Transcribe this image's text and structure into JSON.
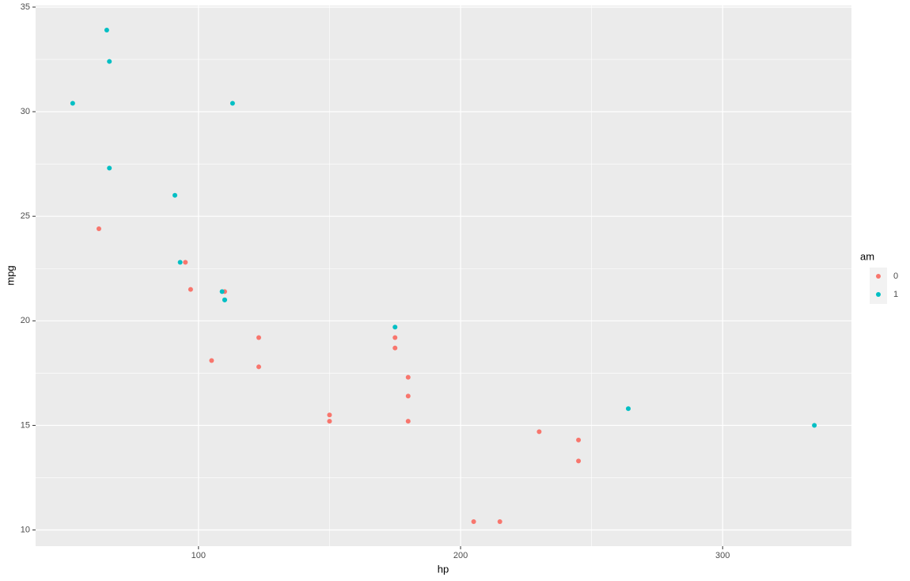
{
  "chart_data": {
    "type": "scatter",
    "x_label": "hp",
    "y_label": "mpg",
    "legend_title": "am",
    "legend_position": "right",
    "xlim": [
      37.85,
      349.15
    ],
    "ylim": [
      9.225,
      35.075
    ],
    "xticks": [
      100,
      200,
      300
    ],
    "yticks": [
      10,
      15,
      20,
      25,
      30,
      35
    ],
    "grid": true,
    "panel_color": "#ebebeb",
    "series": [
      {
        "name": "0",
        "color": "#F8766D",
        "x": [
          110,
          175,
          105,
          245,
          62,
          95,
          123,
          123,
          180,
          180,
          180,
          205,
          215,
          230,
          97,
          150,
          150,
          245,
          175
        ],
        "y": [
          21.4,
          18.7,
          18.1,
          14.3,
          24.4,
          22.8,
          19.2,
          17.8,
          16.4,
          17.3,
          15.2,
          10.4,
          10.4,
          14.7,
          21.5,
          15.5,
          15.2,
          13.3,
          19.2
        ]
      },
      {
        "name": "1",
        "color": "#00BFC4",
        "x": [
          110,
          110,
          93,
          66,
          52,
          65,
          66,
          91,
          113,
          264,
          175,
          335,
          109
        ],
        "y": [
          21.0,
          21.0,
          22.8,
          32.4,
          30.4,
          33.9,
          27.3,
          26.0,
          30.4,
          15.8,
          19.7,
          15.0,
          21.4
        ]
      }
    ]
  }
}
